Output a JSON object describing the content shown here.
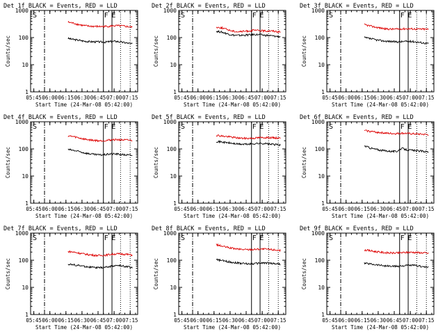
{
  "window_title": "",
  "chart_data": [
    {
      "type": "line",
      "title": "Det 1f BLACK = Events, RED = LLD",
      "xlabel": "Start Time (24-Mar-08 05:42:00)",
      "ylabel": "Counts/sec",
      "xtick_labels": [
        "05:45",
        "06:00",
        "06:15",
        "06:30",
        "06:45",
        "07:00",
        "07:15"
      ],
      "ytick_labels": [
        "1",
        "10",
        "100",
        "1000"
      ],
      "y_scale": "log",
      "ylim": [
        1,
        1000
      ],
      "markers": [
        "S",
        "F",
        "E"
      ],
      "series": [
        {
          "name": "BLACK = Events",
          "color": "#000000",
          "x": [
            "06:17",
            "06:22",
            "06:27",
            "06:32",
            "06:37",
            "06:42",
            "06:47",
            "06:52",
            "06:57",
            "07:02",
            "07:07",
            "07:12",
            "07:17"
          ],
          "values": [
            93,
            85,
            80,
            74,
            71,
            70,
            69,
            68,
            72,
            73,
            68,
            63,
            58
          ]
        },
        {
          "name": "RED = LLD",
          "color": "#dd0000",
          "x": [
            "06:17",
            "06:22",
            "06:27",
            "06:32",
            "06:37",
            "06:42",
            "06:47",
            "06:52",
            "06:57",
            "07:02",
            "07:07",
            "07:12",
            "07:17"
          ],
          "values": [
            370,
            340,
            300,
            275,
            262,
            258,
            255,
            258,
            265,
            275,
            268,
            255,
            240
          ]
        }
      ]
    },
    {
      "type": "line",
      "title": "Det 2f BLACK = Events, RED = LLD",
      "xlabel": "Start Time (24-Mar-08 05:42:00)",
      "ylabel": "Counts/sec",
      "xtick_labels": [
        "05:45",
        "06:00",
        "06:15",
        "06:30",
        "06:45",
        "07:00",
        "07:15"
      ],
      "ytick_labels": [
        "1",
        "10",
        "100",
        "1000"
      ],
      "y_scale": "log",
      "ylim": [
        1,
        1000
      ],
      "markers": [
        "S",
        "F",
        "E"
      ],
      "series": [
        {
          "name": "BLACK = Events",
          "color": "#000000",
          "x": [
            "06:17",
            "06:22",
            "06:27",
            "06:32",
            "06:37",
            "06:42",
            "06:47",
            "06:52",
            "06:57",
            "07:02",
            "07:07",
            "07:12",
            "07:17"
          ],
          "values": [
            170,
            160,
            140,
            125,
            120,
            122,
            125,
            130,
            128,
            122,
            118,
            112,
            108
          ]
        },
        {
          "name": "RED = LLD",
          "color": "#dd0000",
          "x": [
            "06:17",
            "06:22",
            "06:27",
            "06:32",
            "06:37",
            "06:42",
            "06:47",
            "06:52",
            "06:57",
            "07:02",
            "07:07",
            "07:12",
            "07:17"
          ],
          "values": [
            240,
            230,
            200,
            175,
            165,
            168,
            175,
            185,
            182,
            175,
            178,
            172,
            160
          ]
        }
      ]
    },
    {
      "type": "line",
      "title": "Det 3f BLACK = Events, RED = LLD",
      "xlabel": "Start Time (24-Mar-08 05:42:00)",
      "ylabel": "Counts/sec",
      "xtick_labels": [
        "05:45",
        "06:00",
        "06:15",
        "06:30",
        "06:45",
        "07:00",
        "07:15"
      ],
      "ytick_labels": [
        "1",
        "10",
        "100",
        "1000"
      ],
      "y_scale": "log",
      "ylim": [
        1,
        1000
      ],
      "markers": [
        "S",
        "F",
        "E"
      ],
      "series": [
        {
          "name": "BLACK = Events",
          "color": "#000000",
          "x": [
            "06:17",
            "06:22",
            "06:27",
            "06:32",
            "06:37",
            "06:42",
            "06:47",
            "06:52",
            "06:57",
            "07:02",
            "07:07",
            "07:12",
            "07:17"
          ],
          "values": [
            100,
            92,
            84,
            78,
            74,
            72,
            70,
            71,
            73,
            72,
            68,
            64,
            60
          ]
        },
        {
          "name": "RED = LLD",
          "color": "#dd0000",
          "x": [
            "06:17",
            "06:22",
            "06:27",
            "06:32",
            "06:37",
            "06:42",
            "06:47",
            "06:52",
            "06:57",
            "07:02",
            "07:07",
            "07:12",
            "07:17"
          ],
          "values": [
            300,
            270,
            245,
            225,
            210,
            205,
            205,
            210,
            212,
            210,
            205,
            205,
            200
          ]
        }
      ]
    },
    {
      "type": "line",
      "title": "Det 4f BLACK = Events, RED = LLD",
      "xlabel": "Start Time (24-Mar-08 05:42:00)",
      "ylabel": "Counts/sec",
      "xtick_labels": [
        "05:45",
        "06:00",
        "06:15",
        "06:30",
        "06:45",
        "07:00",
        "07:15"
      ],
      "ytick_labels": [
        "1",
        "10",
        "100",
        "1000"
      ],
      "y_scale": "log",
      "ylim": [
        1,
        1000
      ],
      "markers": [
        "S",
        "F",
        "E"
      ],
      "series": [
        {
          "name": "BLACK = Events",
          "color": "#000000",
          "x": [
            "06:17",
            "06:22",
            "06:27",
            "06:32",
            "06:37",
            "06:42",
            "06:47",
            "06:52",
            "06:57",
            "07:02",
            "07:07",
            "07:12",
            "07:17"
          ],
          "values": [
            95,
            88,
            80,
            72,
            66,
            62,
            60,
            62,
            66,
            65,
            62,
            60,
            58
          ]
        },
        {
          "name": "RED = LLD",
          "color": "#dd0000",
          "x": [
            "06:17",
            "06:22",
            "06:27",
            "06:32",
            "06:37",
            "06:42",
            "06:47",
            "06:52",
            "06:57",
            "07:02",
            "07:07",
            "07:12",
            "07:17"
          ],
          "values": [
            300,
            285,
            255,
            230,
            215,
            205,
            200,
            205,
            215,
            220,
            215,
            212,
            205
          ]
        }
      ]
    },
    {
      "type": "line",
      "title": "Det 5f BLACK = Events, RED = LLD",
      "xlabel": "Start Time (24-Mar-08 05:42:00)",
      "ylabel": "Counts/sec",
      "xtick_labels": [
        "05:45",
        "06:00",
        "06:15",
        "06:30",
        "06:45",
        "07:00",
        "07:15"
      ],
      "ytick_labels": [
        "1",
        "10",
        "100",
        "1000"
      ],
      "y_scale": "log",
      "ylim": [
        1,
        1000
      ],
      "markers": [
        "S",
        "F",
        "E"
      ],
      "series": [
        {
          "name": "BLACK = Events",
          "color": "#000000",
          "x": [
            "06:17",
            "06:22",
            "06:27",
            "06:32",
            "06:37",
            "06:42",
            "06:47",
            "06:52",
            "06:57",
            "07:02",
            "07:07",
            "07:12",
            "07:17"
          ],
          "values": [
            190,
            180,
            170,
            160,
            152,
            148,
            150,
            155,
            160,
            158,
            150,
            145,
            140
          ]
        },
        {
          "name": "RED = LLD",
          "color": "#dd0000",
          "x": [
            "06:17",
            "06:22",
            "06:27",
            "06:32",
            "06:37",
            "06:42",
            "06:47",
            "06:52",
            "06:57",
            "07:02",
            "07:07",
            "07:12",
            "07:17"
          ],
          "values": [
            320,
            300,
            285,
            270,
            255,
            245,
            245,
            250,
            258,
            262,
            260,
            255,
            250
          ]
        }
      ]
    },
    {
      "type": "line",
      "title": "Det 6f BLACK = Events, RED = LLD",
      "xlabel": "Start Time (24-Mar-08 05:42:00)",
      "ylabel": "Counts/sec",
      "xtick_labels": [
        "05:45",
        "06:00",
        "06:15",
        "06:30",
        "06:45",
        "07:00",
        "07:15"
      ],
      "ytick_labels": [
        "1",
        "10",
        "100",
        "1000"
      ],
      "y_scale": "log",
      "ylim": [
        1,
        1000
      ],
      "markers": [
        "S",
        "F",
        "E"
      ],
      "series": [
        {
          "name": "BLACK = Events",
          "color": "#000000",
          "x": [
            "06:17",
            "06:22",
            "06:27",
            "06:32",
            "06:37",
            "06:42",
            "06:47",
            "06:52",
            "06:57",
            "07:02",
            "07:07",
            "07:12",
            "07:17"
          ],
          "values": [
            130,
            110,
            98,
            90,
            85,
            82,
            80,
            105,
            92,
            88,
            85,
            82,
            78
          ]
        },
        {
          "name": "RED = LLD",
          "color": "#dd0000",
          "x": [
            "06:17",
            "06:22",
            "06:27",
            "06:32",
            "06:37",
            "06:42",
            "06:47",
            "06:52",
            "06:57",
            "07:02",
            "07:07",
            "07:12",
            "07:17"
          ],
          "values": [
            480,
            450,
            420,
            400,
            380,
            370,
            365,
            380,
            370,
            360,
            352,
            345,
            335
          ]
        }
      ]
    },
    {
      "type": "line",
      "title": "Det 7f BLACK = Events, RED = LLD",
      "xlabel": "Start Time (24-Mar-08 05:42:00)",
      "ylabel": "Counts/sec",
      "xtick_labels": [
        "05:45",
        "06:00",
        "06:15",
        "06:30",
        "06:45",
        "07:00",
        "07:15"
      ],
      "ytick_labels": [
        "1",
        "10",
        "100",
        "1000"
      ],
      "y_scale": "log",
      "ylim": [
        1,
        1000
      ],
      "markers": [
        "S",
        "F",
        "E"
      ],
      "series": [
        {
          "name": "BLACK = Events",
          "color": "#000000",
          "x": [
            "06:17",
            "06:22",
            "06:27",
            "06:32",
            "06:37",
            "06:42",
            "06:47",
            "06:52",
            "06:57",
            "07:02",
            "07:07",
            "07:12",
            "07:17"
          ],
          "values": [
            72,
            68,
            64,
            60,
            56,
            54,
            53,
            55,
            60,
            64,
            62,
            58,
            54
          ]
        },
        {
          "name": "RED = LLD",
          "color": "#dd0000",
          "x": [
            "06:17",
            "06:22",
            "06:27",
            "06:32",
            "06:37",
            "06:42",
            "06:47",
            "06:52",
            "06:57",
            "07:02",
            "07:07",
            "07:12",
            "07:17"
          ],
          "values": [
            210,
            200,
            185,
            170,
            160,
            152,
            150,
            155,
            165,
            172,
            170,
            165,
            155
          ]
        }
      ]
    },
    {
      "type": "line",
      "title": "Det 8f BLACK = Events, RED = LLD",
      "xlabel": "Start Time (24-Mar-08 05:42:00)",
      "ylabel": "Counts/sec",
      "xtick_labels": [
        "05:45",
        "06:00",
        "06:15",
        "06:30",
        "06:45",
        "07:00",
        "07:15"
      ],
      "ytick_labels": [
        "1",
        "10",
        "100",
        "1000"
      ],
      "y_scale": "log",
      "ylim": [
        1,
        1000
      ],
      "markers": [
        "S",
        "F",
        "E"
      ],
      "series": [
        {
          "name": "BLACK = Events",
          "color": "#000000",
          "x": [
            "06:17",
            "06:22",
            "06:27",
            "06:32",
            "06:37",
            "06:42",
            "06:47",
            "06:52",
            "06:57",
            "07:02",
            "07:07",
            "07:12",
            "07:17"
          ],
          "values": [
            105,
            98,
            90,
            84,
            80,
            76,
            74,
            75,
            78,
            80,
            78,
            75,
            72
          ]
        },
        {
          "name": "RED = LLD",
          "color": "#dd0000",
          "x": [
            "06:17",
            "06:22",
            "06:27",
            "06:32",
            "06:37",
            "06:42",
            "06:47",
            "06:52",
            "06:57",
            "07:02",
            "07:07",
            "07:12",
            "07:17"
          ],
          "values": [
            380,
            330,
            300,
            275,
            258,
            250,
            248,
            252,
            258,
            258,
            250,
            242,
            232
          ]
        }
      ]
    },
    {
      "type": "line",
      "title": "Det 9f BLACK = Events, RED = LLD",
      "xlabel": "Start Time (24-Mar-08 05:42:00)",
      "ylabel": "Counts/sec",
      "xtick_labels": [
        "05:45",
        "06:00",
        "06:15",
        "06:30",
        "06:45",
        "07:00",
        "07:15"
      ],
      "ytick_labels": [
        "1",
        "10",
        "100",
        "1000"
      ],
      "y_scale": "log",
      "ylim": [
        1,
        1000
      ],
      "markers": [
        "S",
        "F",
        "E"
      ],
      "series": [
        {
          "name": "BLACK = Events",
          "color": "#000000",
          "x": [
            "06:17",
            "06:22",
            "06:27",
            "06:32",
            "06:37",
            "06:42",
            "06:47",
            "06:52",
            "06:57",
            "07:02",
            "07:07",
            "07:12",
            "07:17"
          ],
          "values": [
            78,
            74,
            70,
            66,
            62,
            60,
            60,
            62,
            64,
            65,
            62,
            58,
            55
          ]
        },
        {
          "name": "RED = LLD",
          "color": "#dd0000",
          "x": [
            "06:17",
            "06:22",
            "06:27",
            "06:32",
            "06:37",
            "06:42",
            "06:47",
            "06:52",
            "06:57",
            "07:02",
            "07:07",
            "07:12",
            "07:17"
          ],
          "values": [
            240,
            225,
            210,
            198,
            190,
            185,
            185,
            190,
            195,
            198,
            192,
            188,
            180
          ]
        }
      ]
    }
  ]
}
